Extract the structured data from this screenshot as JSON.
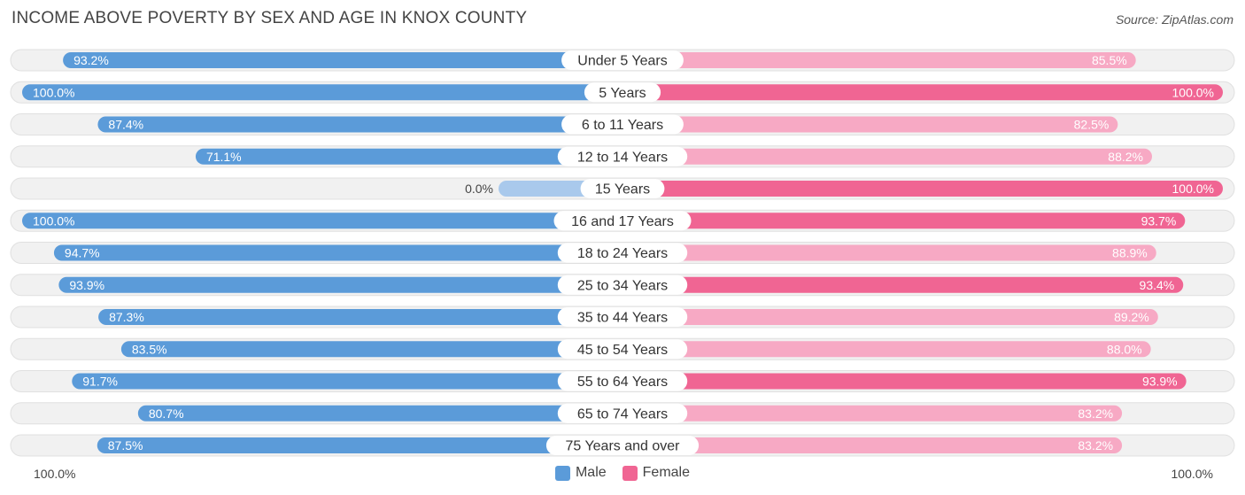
{
  "title": "INCOME ABOVE POVERTY BY SEX AND AGE IN KNOX COUNTY",
  "source": "Source: ZipAtlas.com",
  "axis": {
    "left_label": "100.0%",
    "right_label": "100.0%"
  },
  "legend": {
    "male_label": "Male",
    "female_label": "Female"
  },
  "colors": {
    "male_strong": "#5b9bd9",
    "male_light": "#a9c9ec",
    "female_strong": "#f06593",
    "female_light": "#f7a9c4",
    "track": "#f1f1f1",
    "track_border": "#e0e0e0"
  },
  "chart_data": {
    "type": "bar",
    "orientation": "horizontal-diverging",
    "title": "INCOME ABOVE POVERTY BY SEX AND AGE IN KNOX COUNTY",
    "xlim": [
      0,
      100
    ],
    "categories": [
      "Under 5 Years",
      "5 Years",
      "6 to 11 Years",
      "12 to 14 Years",
      "15 Years",
      "16 and 17 Years",
      "18 to 24 Years",
      "25 to 34 Years",
      "35 to 44 Years",
      "45 to 54 Years",
      "55 to 64 Years",
      "65 to 74 Years",
      "75 Years and over"
    ],
    "series": [
      {
        "name": "Male",
        "values": [
          93.2,
          100.0,
          87.4,
          71.1,
          0.0,
          100.0,
          94.7,
          93.9,
          87.3,
          83.5,
          91.7,
          80.7,
          87.5
        ],
        "labels": [
          "93.2%",
          "100.0%",
          "87.4%",
          "71.1%",
          "0.0%",
          "100.0%",
          "94.7%",
          "93.9%",
          "87.3%",
          "83.5%",
          "91.7%",
          "80.7%",
          "87.5%"
        ]
      },
      {
        "name": "Female",
        "values": [
          85.5,
          100.0,
          82.5,
          88.2,
          100.0,
          93.7,
          88.9,
          93.4,
          89.2,
          88.0,
          93.9,
          83.2,
          83.2
        ],
        "labels": [
          "85.5%",
          "100.0%",
          "82.5%",
          "88.2%",
          "100.0%",
          "93.7%",
          "88.9%",
          "93.4%",
          "89.2%",
          "88.0%",
          "93.9%",
          "83.2%",
          "83.2%"
        ]
      }
    ]
  }
}
